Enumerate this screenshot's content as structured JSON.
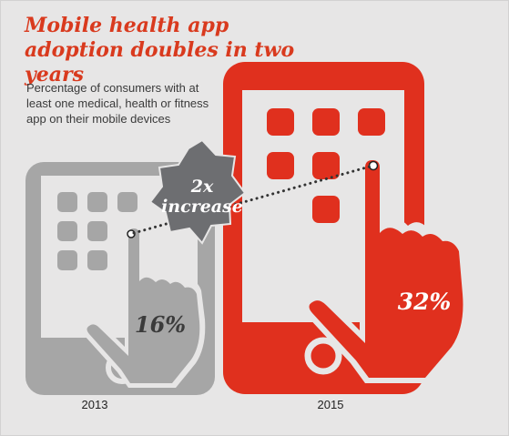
{
  "chart_data": {
    "type": "pictograph",
    "title": "Mobile health app adoption doubles in two years",
    "subtitle": "Percentage of consumers with at least one medical, health or fitness app on their mobile devices",
    "categories": [
      "2013",
      "2015"
    ],
    "values": [
      16,
      32
    ],
    "value_labels": [
      "16%",
      "32%"
    ],
    "unit": "%",
    "annotation": {
      "line1": "2x",
      "line2": "increase"
    },
    "colors": {
      "2013": "#a6a6a6",
      "2015": "#e0301e",
      "title": "#d93a1e",
      "badge": "#6d6e71"
    }
  }
}
